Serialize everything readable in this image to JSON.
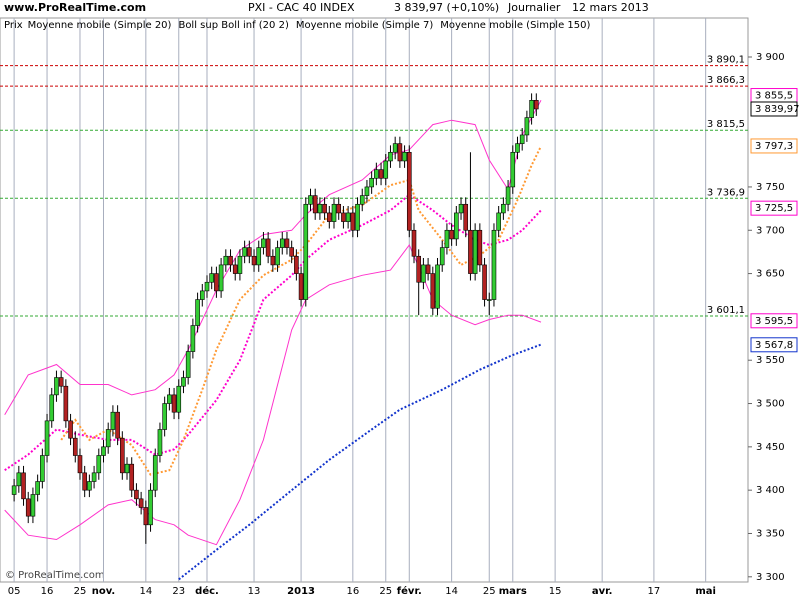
{
  "chart_data": {
    "type": "candlestick",
    "site": "www.ProRealTime.com",
    "instrument": "PXI - CAC 40 INDEX",
    "quote": "3 839,97 (+0,10%)",
    "period": "Journalier",
    "date": "12 mars 2013",
    "copyright": "© ProRealTime.com",
    "price_label": "Prix",
    "xlim": [
      -3,
      156
    ],
    "ylim": [
      3294,
      3945
    ],
    "xticks": [
      {
        "value": 0,
        "label": "05"
      },
      {
        "value": 7,
        "label": "16"
      },
      {
        "value": 14,
        "label": "25"
      },
      {
        "value": 19,
        "label": "nov.",
        "bold": true
      },
      {
        "value": 28,
        "label": "14"
      },
      {
        "value": 35,
        "label": "23"
      },
      {
        "value": 41,
        "label": "déc.",
        "bold": true
      },
      {
        "value": 51,
        "label": "13"
      },
      {
        "value": 61,
        "label": "2013",
        "bold": true
      },
      {
        "value": 72,
        "label": "16"
      },
      {
        "value": 79,
        "label": "25"
      },
      {
        "value": 84,
        "label": "févr.",
        "bold": true
      },
      {
        "value": 93,
        "label": "14"
      },
      {
        "value": 101,
        "label": "25"
      },
      {
        "value": 106,
        "label": "mars",
        "bold": true
      },
      {
        "value": 115,
        "label": "15"
      },
      {
        "value": 125,
        "label": "avr.",
        "bold": true
      },
      {
        "value": 136,
        "label": "17"
      },
      {
        "value": 147,
        "label": "mai",
        "bold": true
      }
    ],
    "yticks": [
      {
        "value": 3300,
        "label": "3 300"
      },
      {
        "value": 3350,
        "label": "3 350"
      },
      {
        "value": 3400,
        "label": "3 400"
      },
      {
        "value": 3450,
        "label": "3 450"
      },
      {
        "value": 3500,
        "label": "3 500"
      },
      {
        "value": 3550,
        "label": "3 550"
      },
      {
        "value": 3650,
        "label": "3 650"
      },
      {
        "value": 3700,
        "label": "3 700"
      },
      {
        "value": 3750,
        "label": "3 750"
      },
      {
        "value": 3900,
        "label": "3 900"
      }
    ],
    "candles": {
      "up_color": "#33cc33",
      "down_color": "#b22222",
      "x": [
        0,
        1,
        2,
        3,
        4,
        5,
        6,
        7,
        8,
        9,
        10,
        11,
        12,
        13,
        14,
        15,
        16,
        17,
        18,
        19,
        20,
        21,
        22,
        23,
        24,
        25,
        26,
        27,
        28,
        29,
        30,
        31,
        32,
        33,
        34,
        35,
        36,
        37,
        38,
        39,
        40,
        41,
        42,
        43,
        44,
        45,
        46,
        47,
        48,
        49,
        50,
        51,
        52,
        53,
        54,
        55,
        56,
        57,
        58,
        59,
        60,
        61,
        62,
        63,
        64,
        65,
        66,
        67,
        68,
        69,
        70,
        71,
        72,
        73,
        74,
        75,
        76,
        77,
        78,
        79,
        80,
        81,
        82,
        83,
        84,
        85,
        86,
        87,
        88,
        89,
        90,
        91,
        92,
        93,
        94,
        95,
        96,
        97,
        98,
        99,
        100,
        101,
        102,
        103,
        104,
        105,
        106,
        107,
        108,
        109,
        110,
        111
      ],
      "open": [
        3395,
        3405,
        3420,
        3390,
        3370,
        3395,
        3410,
        3440,
        3480,
        3510,
        3530,
        3520,
        3480,
        3460,
        3440,
        3420,
        3400,
        3410,
        3420,
        3440,
        3450,
        3470,
        3490,
        3460,
        3420,
        3430,
        3400,
        3390,
        3380,
        3360,
        3400,
        3440,
        3470,
        3500,
        3510,
        3490,
        3520,
        3530,
        3560,
        3590,
        3620,
        3630,
        3640,
        3650,
        3630,
        3660,
        3670,
        3660,
        3650,
        3670,
        3680,
        3670,
        3660,
        3680,
        3690,
        3670,
        3660,
        3680,
        3690,
        3680,
        3670,
        3650,
        3620,
        3730,
        3740,
        3720,
        3730,
        3720,
        3710,
        3730,
        3720,
        3710,
        3720,
        3700,
        3730,
        3740,
        3750,
        3760,
        3770,
        3760,
        3780,
        3790,
        3800,
        3780,
        3790,
        3700,
        3670,
        3640,
        3660,
        3650,
        3610,
        3660,
        3680,
        3700,
        3690,
        3720,
        3730,
        3700,
        3650,
        3700,
        3660,
        3620,
        3620,
        3700,
        3720,
        3730,
        3750,
        3790,
        3800,
        3810,
        3830,
        3850
      ],
      "high": [
        3413,
        3428,
        3428,
        3398,
        3403,
        3418,
        3448,
        3488,
        3518,
        3538,
        3538,
        3528,
        3488,
        3468,
        3448,
        3428,
        3418,
        3428,
        3448,
        3458,
        3478,
        3498,
        3498,
        3468,
        3438,
        3438,
        3408,
        3398,
        3388,
        3408,
        3448,
        3478,
        3508,
        3518,
        3518,
        3528,
        3538,
        3568,
        3598,
        3628,
        3638,
        3648,
        3658,
        3658,
        3668,
        3678,
        3678,
        3668,
        3678,
        3688,
        3688,
        3678,
        3688,
        3698,
        3698,
        3678,
        3688,
        3698,
        3698,
        3688,
        3678,
        3658,
        3738,
        3748,
        3748,
        3738,
        3738,
        3728,
        3738,
        3738,
        3728,
        3728,
        3728,
        3738,
        3748,
        3758,
        3768,
        3778,
        3778,
        3788,
        3798,
        3808,
        3808,
        3798,
        3798,
        3708,
        3678,
        3668,
        3668,
        3658,
        3668,
        3688,
        3708,
        3708,
        3728,
        3738,
        3738,
        3790,
        3708,
        3708,
        3668,
        3628,
        3708,
        3728,
        3738,
        3758,
        3798,
        3808,
        3818,
        3838,
        3858,
        3858
      ],
      "low": [
        3387,
        3397,
        3382,
        3362,
        3362,
        3387,
        3402,
        3432,
        3472,
        3502,
        3512,
        3472,
        3452,
        3432,
        3412,
        3392,
        3392,
        3402,
        3412,
        3432,
        3442,
        3462,
        3452,
        3412,
        3412,
        3392,
        3382,
        3372,
        3338,
        3352,
        3392,
        3432,
        3462,
        3492,
        3482,
        3482,
        3512,
        3522,
        3552,
        3582,
        3612,
        3622,
        3632,
        3622,
        3622,
        3652,
        3652,
        3642,
        3642,
        3662,
        3662,
        3652,
        3652,
        3672,
        3662,
        3652,
        3652,
        3672,
        3672,
        3662,
        3642,
        3612,
        3612,
        3722,
        3712,
        3712,
        3712,
        3702,
        3702,
        3712,
        3702,
        3702,
        3692,
        3692,
        3722,
        3732,
        3742,
        3752,
        3752,
        3752,
        3772,
        3782,
        3772,
        3772,
        3692,
        3662,
        3602,
        3632,
        3642,
        3602,
        3602,
        3652,
        3672,
        3682,
        3682,
        3712,
        3692,
        3642,
        3642,
        3652,
        3612,
        3602,
        3612,
        3692,
        3712,
        3722,
        3742,
        3782,
        3792,
        3802,
        3822,
        3832
      ],
      "close": [
        3405,
        3420,
        3390,
        3370,
        3395,
        3410,
        3440,
        3480,
        3510,
        3530,
        3520,
        3480,
        3460,
        3440,
        3420,
        3400,
        3410,
        3420,
        3440,
        3450,
        3470,
        3490,
        3460,
        3420,
        3430,
        3400,
        3390,
        3380,
        3360,
        3400,
        3440,
        3470,
        3500,
        3510,
        3490,
        3520,
        3530,
        3560,
        3590,
        3620,
        3630,
        3640,
        3650,
        3630,
        3660,
        3670,
        3660,
        3650,
        3670,
        3680,
        3670,
        3660,
        3680,
        3690,
        3670,
        3660,
        3680,
        3690,
        3680,
        3670,
        3650,
        3620,
        3730,
        3740,
        3720,
        3730,
        3720,
        3710,
        3730,
        3720,
        3710,
        3720,
        3700,
        3730,
        3740,
        3750,
        3760,
        3770,
        3760,
        3780,
        3790,
        3800,
        3780,
        3790,
        3700,
        3670,
        3640,
        3660,
        3650,
        3610,
        3660,
        3680,
        3700,
        3690,
        3720,
        3730,
        3700,
        3650,
        3700,
        3660,
        3620,
        3620,
        3700,
        3720,
        3730,
        3750,
        3790,
        3800,
        3810,
        3830,
        3850,
        3839.97
      ]
    },
    "series": [
      {
        "name": "Moyenne mobile (Simple 20)",
        "color": "#ff00cc",
        "dash": true,
        "x": [
          -2,
          3,
          9,
          14,
          20,
          25,
          30,
          34,
          37,
          43,
          48,
          53,
          59,
          62,
          67,
          74,
          80,
          84,
          89,
          93,
          98,
          101,
          105,
          108,
          112
        ],
        "values": [
          3423,
          3441,
          3470,
          3464,
          3458,
          3458,
          3441,
          3447,
          3464,
          3504,
          3550,
          3620,
          3648,
          3666,
          3689,
          3706,
          3723,
          3741,
          3723,
          3706,
          3689,
          3683,
          3689,
          3700,
          3723
        ]
      },
      {
        "name": "Boll sup Boll inf (20 2)",
        "color": "#ff33cc",
        "dash": false,
        "x": [
          -2,
          3,
          9,
          14,
          20,
          25,
          30,
          34,
          37,
          43,
          48,
          53,
          59,
          62,
          67,
          74,
          80,
          84,
          89,
          93,
          98,
          101,
          105,
          108,
          112
        ],
        "values": [
          3487,
          3533,
          3545,
          3522,
          3522,
          3510,
          3516,
          3533,
          3562,
          3631,
          3677,
          3695,
          3700,
          3718,
          3741,
          3758,
          3787,
          3793,
          3822,
          3827,
          3822,
          3781,
          3747,
          3810,
          3850
        ],
        "lower": [
          3377,
          3348,
          3343,
          3360,
          3383,
          3389,
          3366,
          3360,
          3348,
          3337,
          3389,
          3458,
          3585,
          3620,
          3637,
          3648,
          3654,
          3683,
          3620,
          3602,
          3591,
          3597,
          3602,
          3602,
          3594
        ]
      },
      {
        "name": "Moyenne mobile (Simple 7)",
        "color": "#ff9933",
        "dash": true,
        "x": [
          10,
          13,
          16,
          20,
          25,
          29,
          33,
          36,
          40,
          43,
          48,
          53,
          59,
          62,
          67,
          74,
          80,
          84,
          86,
          91,
          95,
          99,
          103,
          107,
          110,
          112
        ],
        "values": [
          3458,
          3481,
          3458,
          3470,
          3452,
          3418,
          3423,
          3458,
          3516,
          3562,
          3620,
          3648,
          3666,
          3683,
          3718,
          3729,
          3752,
          3758,
          3723,
          3689,
          3660,
          3671,
          3689,
          3735,
          3775,
          3797
        ]
      },
      {
        "name": "Moyenne mobile (Simple 150)",
        "color": "#1133cc",
        "dash": true,
        "x": [
          35,
          43,
          50,
          59,
          67,
          76,
          82,
          91,
          99,
          106,
          112
        ],
        "values": [
          3297,
          3331,
          3360,
          3400,
          3435,
          3470,
          3493,
          3516,
          3539,
          3556,
          3568
        ]
      }
    ],
    "levels": [
      {
        "value": 3890.1,
        "label": "3 890,1",
        "color": "#cc0000",
        "kind": "line"
      },
      {
        "value": 3866.3,
        "label": "3 866,3",
        "color": "#cc0000",
        "kind": "line"
      },
      {
        "value": 3855.5,
        "label": "3 855,5",
        "color": "#ff00cc",
        "kind": "box"
      },
      {
        "value": 3839.97,
        "label": "3 839,97",
        "color": "#000000",
        "kind": "box"
      },
      {
        "value": 3815.5,
        "label": "3 815,5",
        "color": "#33aa33",
        "kind": "line"
      },
      {
        "value": 3797.3,
        "label": "3 797,3",
        "color": "#ff9933",
        "kind": "box"
      },
      {
        "value": 3736.9,
        "label": "3 736,9",
        "color": "#33aa33",
        "kind": "line"
      },
      {
        "value": 3725.5,
        "label": "3 725,5",
        "color": "#ff00cc",
        "kind": "box"
      },
      {
        "value": 3601.1,
        "label": "3 601,1",
        "color": "#33aa33",
        "kind": "line"
      },
      {
        "value": 3595.5,
        "label": "3 595,5",
        "color": "#ff00cc",
        "kind": "box"
      },
      {
        "value": 3567.8,
        "label": "3 567,8",
        "color": "#1133cc",
        "kind": "box"
      }
    ]
  }
}
